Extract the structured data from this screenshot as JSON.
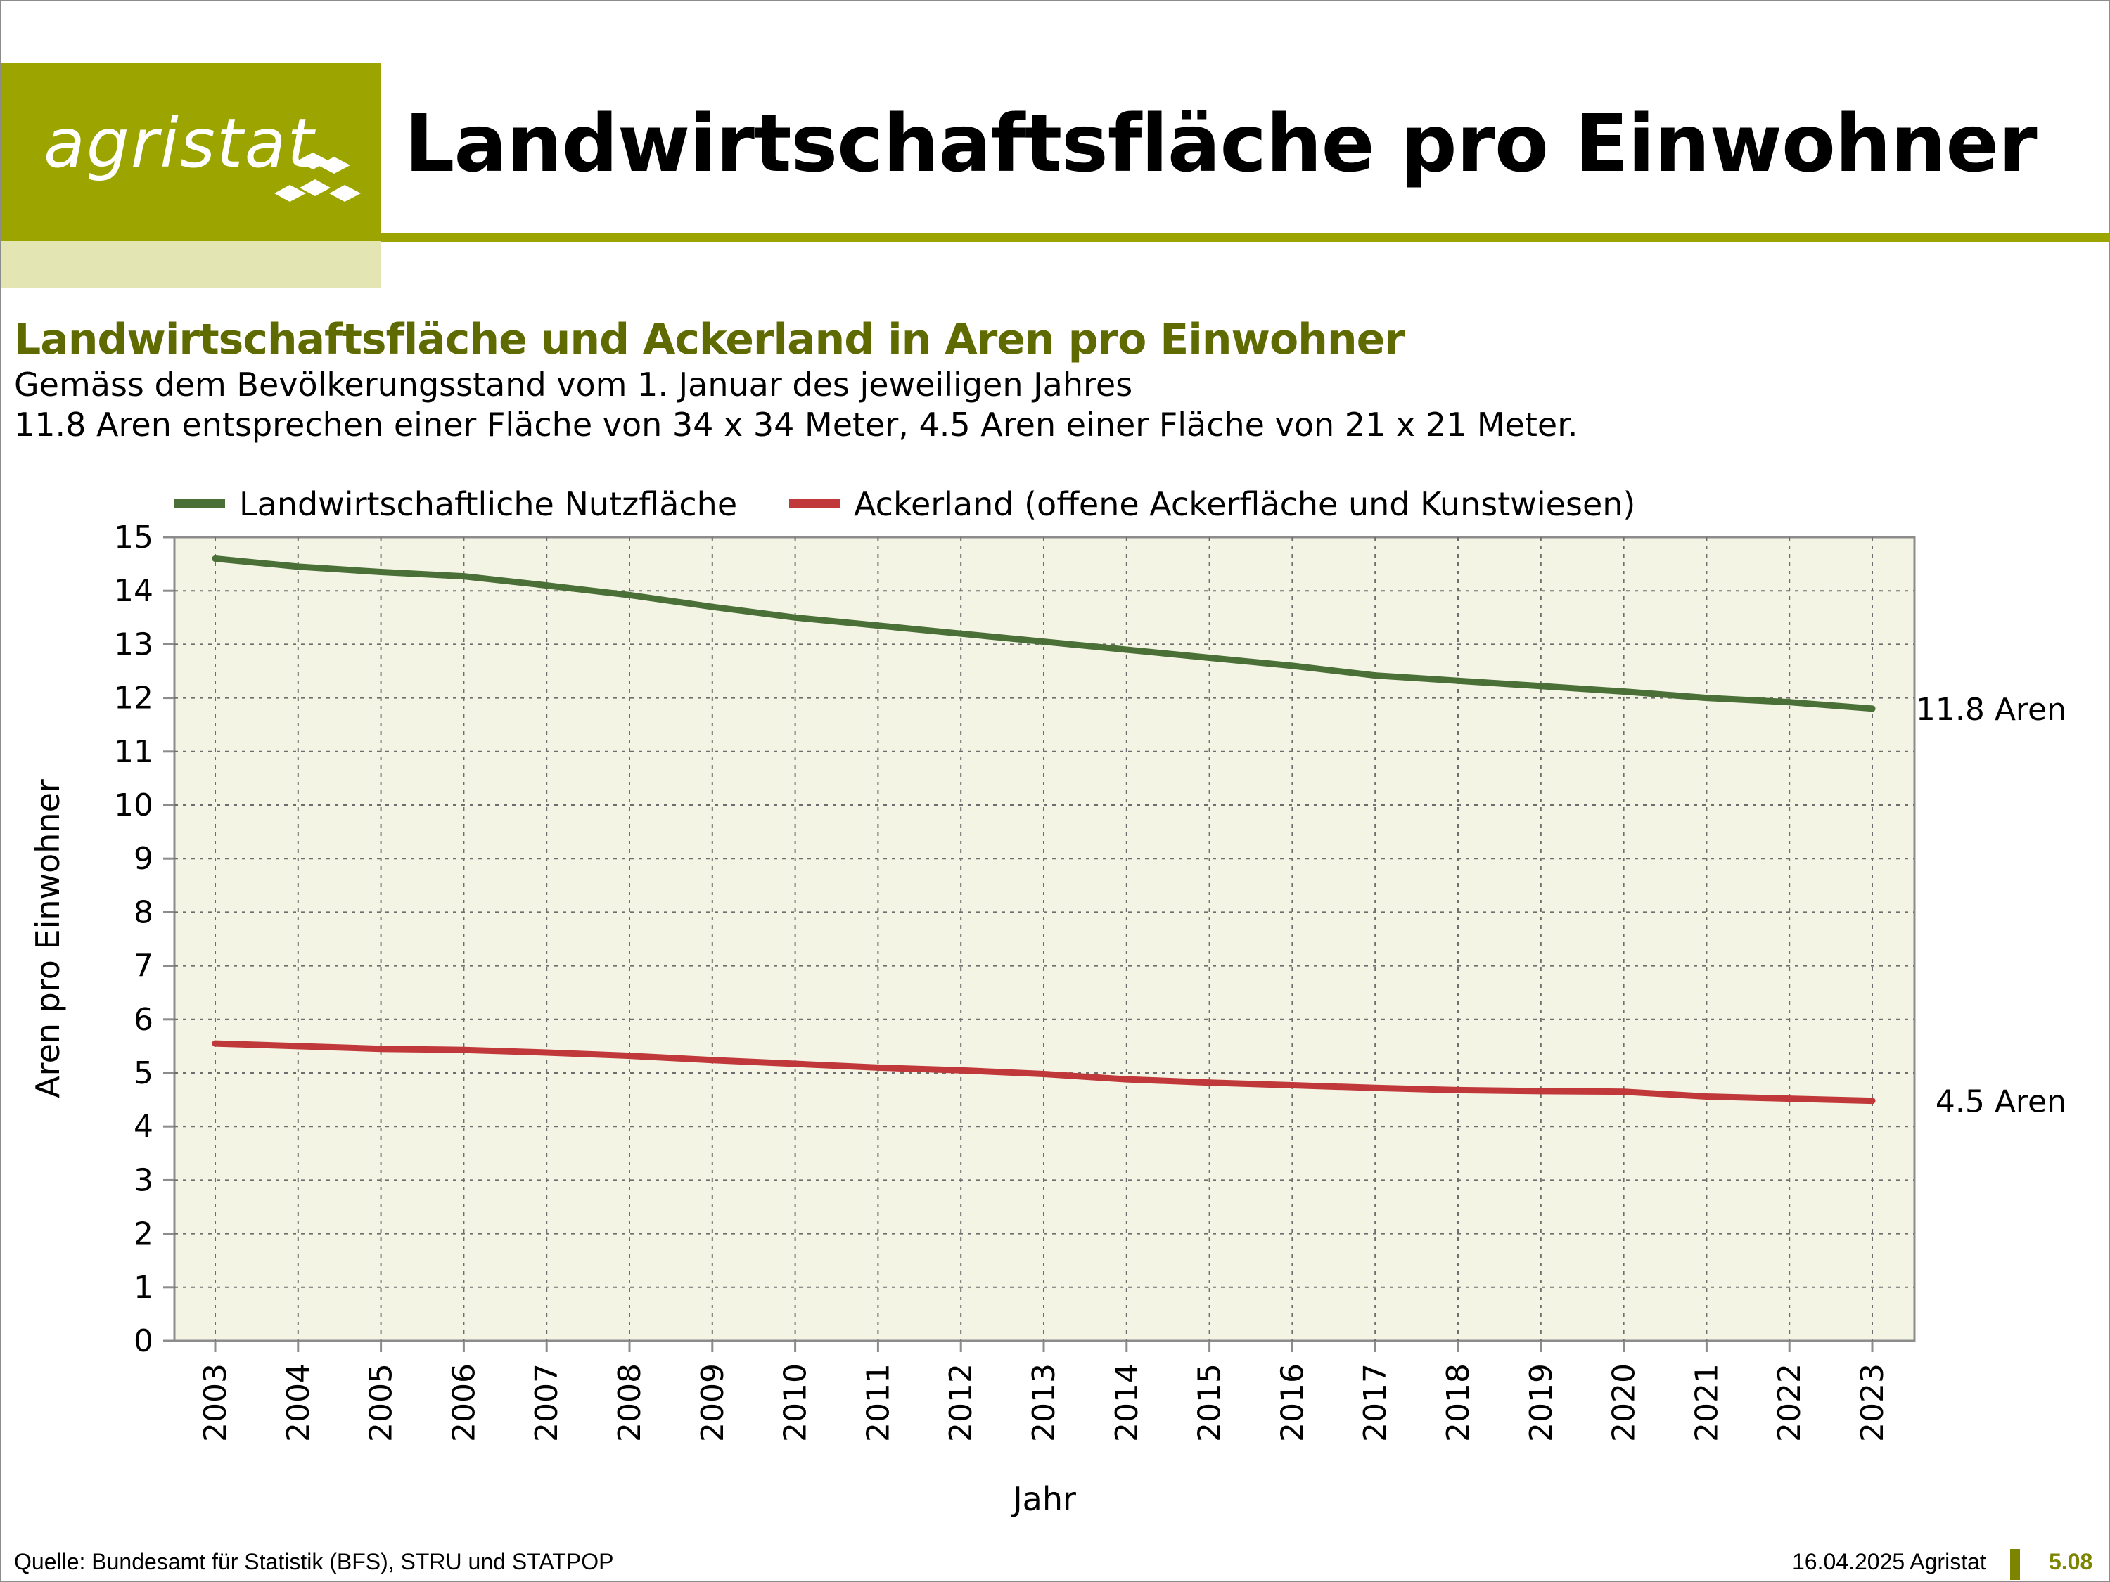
{
  "logo": {
    "text": "agristat"
  },
  "header": {
    "title": "Landwirtschaftsfläche pro Einwohner"
  },
  "chart_header": {
    "subtitle": "Landwirtschaftsfläche und Ackerland in Aren pro Einwohner",
    "note1": "Gemäss dem Bevölkerungsstand vom 1. Januar des jeweiligen Jahres",
    "note2": "11.8 Aren entsprechen einer Fläche von 34 x 34 Meter, 4.5 Aren einer Fläche von 21 x 21 Meter."
  },
  "colors": {
    "brand": "#9ca500",
    "brand_light": "#e3e5b3",
    "plot_bg": "#f4f4e4",
    "series_green": "#4a7038",
    "series_red": "#c0383a"
  },
  "chart_data": {
    "type": "line",
    "title": "Landwirtschaftsfläche und Ackerland in Aren pro Einwohner",
    "xlabel": "Jahr",
    "ylabel": "Aren pro Einwohner",
    "ylim": [
      0,
      15
    ],
    "yticks": [
      "0",
      "1",
      "2",
      "3",
      "4",
      "5",
      "6",
      "7",
      "8",
      "9",
      "10",
      "11",
      "12",
      "13",
      "14",
      "15"
    ],
    "grid": true,
    "legend_position": "top",
    "categories": [
      "2003",
      "2004",
      "2005",
      "2006",
      "2007",
      "2008",
      "2009",
      "2010",
      "2011",
      "2012",
      "2013",
      "2014",
      "2015",
      "2016",
      "2017",
      "2018",
      "2019",
      "2020",
      "2021",
      "2022",
      "2023"
    ],
    "series": [
      {
        "name": "Landwirtschaftliche Nutzfläche",
        "color": "#4a7038",
        "values": [
          14.6,
          14.45,
          14.35,
          14.27,
          14.1,
          13.92,
          13.7,
          13.5,
          13.35,
          13.2,
          13.05,
          12.9,
          12.75,
          12.6,
          12.42,
          12.32,
          12.22,
          12.12,
          12.0,
          11.92,
          11.8
        ],
        "end_label": "11.8 Aren"
      },
      {
        "name": "Ackerland (offene Ackerfläche und Kunstwiesen)",
        "color": "#c0383a",
        "values": [
          5.55,
          5.5,
          5.45,
          5.43,
          5.38,
          5.32,
          5.24,
          5.17,
          5.1,
          5.05,
          4.98,
          4.88,
          4.82,
          4.77,
          4.72,
          4.68,
          4.66,
          4.65,
          4.56,
          4.52,
          4.48
        ],
        "end_label": "4.5 Aren"
      }
    ]
  },
  "footer": {
    "source": "Quelle: Bundesamt für Statistik (BFS), STRU und STATPOP",
    "date": "16.04.2025 Agristat",
    "page": "5.08"
  }
}
